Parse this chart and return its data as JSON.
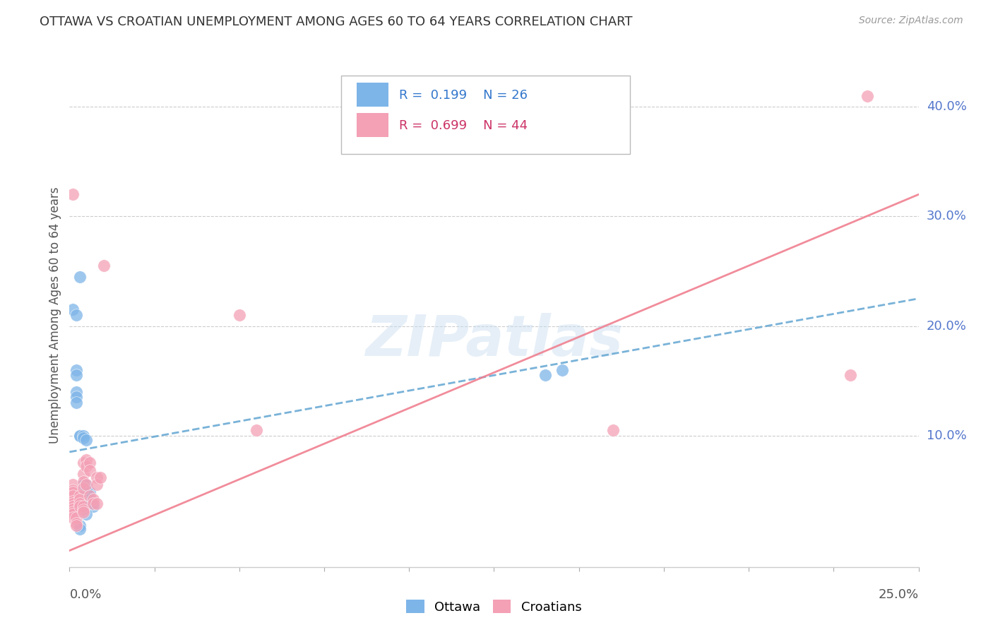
{
  "title": "OTTAWA VS CROATIAN UNEMPLOYMENT AMONG AGES 60 TO 64 YEARS CORRELATION CHART",
  "source": "Source: ZipAtlas.com",
  "ylabel": "Unemployment Among Ages 60 to 64 years",
  "ytick_labels": [
    "10.0%",
    "20.0%",
    "30.0%",
    "40.0%"
  ],
  "ytick_values": [
    0.1,
    0.2,
    0.3,
    0.4
  ],
  "xlim": [
    0,
    0.25
  ],
  "ylim": [
    -0.02,
    0.44
  ],
  "ottawa_color": "#7eb5e8",
  "croatian_color": "#f4a0b5",
  "ottawa_line_color": "#6aaad4",
  "croatian_line_color": "#f08090",
  "ottawa_R": "0.199",
  "ottawa_N": "26",
  "croatian_R": "0.699",
  "croatian_N": "44",
  "watermark": "ZIPatlas",
  "legend_entries": [
    "Ottawa",
    "Croatians"
  ],
  "ottawa_points": [
    [
      0.001,
      0.215
    ],
    [
      0.002,
      0.21
    ],
    [
      0.003,
      0.245
    ],
    [
      0.002,
      0.16
    ],
    [
      0.002,
      0.155
    ],
    [
      0.002,
      0.14
    ],
    [
      0.002,
      0.135
    ],
    [
      0.002,
      0.13
    ],
    [
      0.003,
      0.1
    ],
    [
      0.003,
      0.1
    ],
    [
      0.004,
      0.1
    ],
    [
      0.004,
      0.098
    ],
    [
      0.005,
      0.096
    ],
    [
      0.004,
      0.055
    ],
    [
      0.005,
      0.055
    ],
    [
      0.005,
      0.05
    ],
    [
      0.006,
      0.048
    ],
    [
      0.006,
      0.042
    ],
    [
      0.006,
      0.038
    ],
    [
      0.007,
      0.038
    ],
    [
      0.007,
      0.035
    ],
    [
      0.005,
      0.028
    ],
    [
      0.003,
      0.018
    ],
    [
      0.003,
      0.015
    ],
    [
      0.14,
      0.155
    ],
    [
      0.145,
      0.16
    ]
  ],
  "croatian_points": [
    [
      0.001,
      0.32
    ],
    [
      0.001,
      0.055
    ],
    [
      0.001,
      0.05
    ],
    [
      0.001,
      0.048
    ],
    [
      0.001,
      0.045
    ],
    [
      0.001,
      0.04
    ],
    [
      0.001,
      0.038
    ],
    [
      0.001,
      0.035
    ],
    [
      0.001,
      0.033
    ],
    [
      0.001,
      0.03
    ],
    [
      0.001,
      0.028
    ],
    [
      0.001,
      0.025
    ],
    [
      0.002,
      0.025
    ],
    [
      0.002,
      0.02
    ],
    [
      0.002,
      0.018
    ],
    [
      0.003,
      0.045
    ],
    [
      0.003,
      0.042
    ],
    [
      0.003,
      0.038
    ],
    [
      0.003,
      0.035
    ],
    [
      0.004,
      0.075
    ],
    [
      0.004,
      0.065
    ],
    [
      0.004,
      0.058
    ],
    [
      0.004,
      0.052
    ],
    [
      0.004,
      0.035
    ],
    [
      0.004,
      0.032
    ],
    [
      0.004,
      0.03
    ],
    [
      0.005,
      0.078
    ],
    [
      0.005,
      0.072
    ],
    [
      0.005,
      0.055
    ],
    [
      0.006,
      0.075
    ],
    [
      0.006,
      0.068
    ],
    [
      0.006,
      0.045
    ],
    [
      0.007,
      0.042
    ],
    [
      0.007,
      0.038
    ],
    [
      0.008,
      0.062
    ],
    [
      0.008,
      0.055
    ],
    [
      0.008,
      0.038
    ],
    [
      0.009,
      0.062
    ],
    [
      0.01,
      0.255
    ],
    [
      0.05,
      0.21
    ],
    [
      0.055,
      0.105
    ],
    [
      0.16,
      0.105
    ],
    [
      0.23,
      0.155
    ],
    [
      0.235,
      0.41
    ]
  ],
  "ott_line_x": [
    0.0,
    0.25
  ],
  "ott_line_y": [
    0.085,
    0.225
  ],
  "cro_line_x": [
    0.0,
    0.25
  ],
  "cro_line_y": [
    -0.005,
    0.32
  ]
}
